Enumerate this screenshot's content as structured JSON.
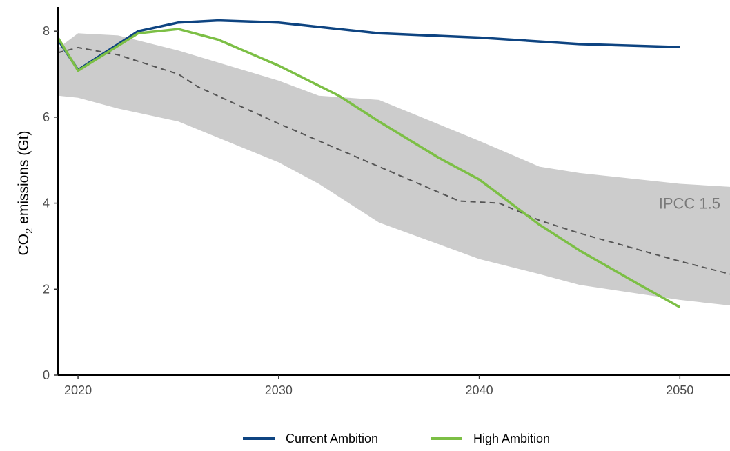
{
  "chart_data": {
    "type": "line",
    "title": "",
    "xlabel": "",
    "ylabel": "CO2 emissions (Gt)",
    "ylabel_parts": {
      "prefix": "CO",
      "subscript": "2",
      "suffix": " emissions (Gt)"
    },
    "xlim": [
      2019,
      2052.5
    ],
    "ylim": [
      0,
      8.5
    ],
    "x_ticks": [
      2020,
      2030,
      2040,
      2050
    ],
    "y_ticks": [
      0,
      2,
      4,
      6,
      8
    ],
    "grid": false,
    "legend_position": "bottom",
    "band": {
      "label": "IPCC 1.5",
      "color": "#cccccc",
      "x": [
        2019,
        2020,
        2022,
        2025,
        2030,
        2032,
        2035,
        2040,
        2043,
        2045,
        2050,
        2052.5
      ],
      "lower": [
        6.5,
        6.45,
        6.2,
        5.9,
        4.95,
        4.45,
        3.55,
        2.7,
        2.35,
        2.1,
        1.75,
        1.62
      ],
      "upper": [
        7.6,
        7.95,
        7.9,
        7.55,
        6.85,
        6.5,
        6.4,
        5.45,
        4.85,
        4.7,
        4.45,
        4.38
      ]
    },
    "reference_line": {
      "style": "dashed",
      "color": "#555555",
      "x": [
        2019,
        2020,
        2022,
        2025,
        2026,
        2030,
        2035,
        2039,
        2041,
        2043,
        2045,
        2050,
        2052.5
      ],
      "y": [
        7.5,
        7.62,
        7.45,
        7.0,
        6.7,
        5.85,
        4.85,
        4.05,
        4.0,
        3.6,
        3.3,
        2.65,
        2.35
      ]
    },
    "series": [
      {
        "name": "Current Ambition",
        "color": "#0e4481",
        "x": [
          2019,
          2020,
          2023,
          2025,
          2027,
          2030,
          2035,
          2040,
          2045,
          2050
        ],
        "y": [
          7.8,
          7.1,
          8.0,
          8.2,
          8.25,
          8.2,
          7.95,
          7.85,
          7.7,
          7.63
        ]
      },
      {
        "name": "High Ambition",
        "color": "#7cbf45",
        "x": [
          2019,
          2020,
          2023,
          2025,
          2027,
          2030,
          2033,
          2035,
          2038,
          2040,
          2043,
          2045,
          2048,
          2050
        ],
        "y": [
          7.85,
          7.08,
          7.95,
          8.05,
          7.8,
          7.2,
          6.5,
          5.9,
          5.05,
          4.55,
          3.5,
          2.9,
          2.1,
          1.58
        ]
      }
    ]
  }
}
